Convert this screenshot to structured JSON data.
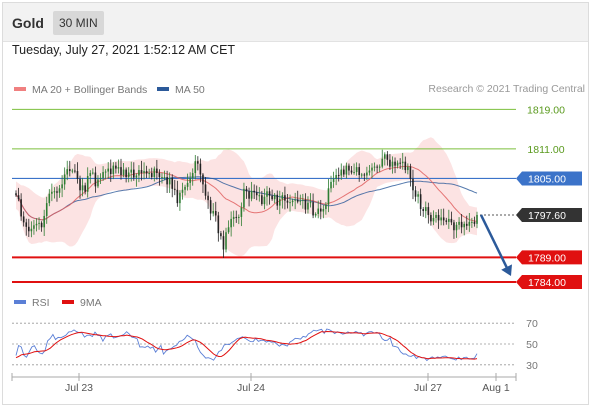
{
  "header": {
    "symbol": "Gold",
    "timeframe": "30 MIN"
  },
  "timestamp": "Tuesday, July 27, 2021 1:52:12 AM CET",
  "legend": {
    "ma20": {
      "label": "MA 20 + Bollinger Bands",
      "color": "#f08080"
    },
    "ma50": {
      "label": "MA 50",
      "color": "#2c5a9a"
    },
    "copyright": "Research © 2021 Trading Central"
  },
  "rsi_legend": {
    "rsi": {
      "label": "RSI",
      "color": "#5b7fd6"
    },
    "ma9": {
      "label": "9MA",
      "color": "#e01010"
    }
  },
  "chart_data": [
    {
      "type": "candlestick",
      "ylim": [
        1783.2,
        1820.5
      ],
      "x_ticks": [
        "Jul 23",
        "Jul 24",
        "Jul 27",
        "Aug 1"
      ],
      "levels": [
        {
          "label": "1819.00",
          "value": 1819.0,
          "kind": "resistance",
          "color": "#7cbf3c"
        },
        {
          "label": "1811.00",
          "value": 1811.0,
          "kind": "resistance",
          "color": "#7cbf3c"
        },
        {
          "label": "1805.00",
          "value": 1805.0,
          "kind": "pivot",
          "color": "#3b73c9"
        },
        {
          "label": "1797.60",
          "value": 1797.6,
          "kind": "last-price",
          "color": "#333333"
        },
        {
          "label": "1789.00",
          "value": 1789.0,
          "kind": "support",
          "color": "#e01010"
        },
        {
          "label": "1784.00",
          "value": 1784.0,
          "kind": "support",
          "color": "#e01010"
        }
      ],
      "close": [
        1801.6,
        1800.8,
        1797.3,
        1796.1,
        1795.2,
        1794.3,
        1794.8,
        1795.5,
        1795.8,
        1796.0,
        1795.1,
        1797.4,
        1800.0,
        1801.9,
        1802.3,
        1802.4,
        1802.1,
        1803.0,
        1803.8,
        1805.8,
        1806.9,
        1806.5,
        1806.6,
        1806.5,
        1804.9,
        1802.6,
        1803.6,
        1802.3,
        1805.5,
        1806.1,
        1806.2,
        1803.4,
        1804.8,
        1805.1,
        1806.3,
        1806.4,
        1807.0,
        1805.9,
        1807.6,
        1807.0,
        1807.3,
        1805.7,
        1806.8,
        1805.3,
        1806.2,
        1806.8,
        1805.2,
        1805.6,
        1806.7,
        1806.1,
        1806.5,
        1806.0,
        1806.1,
        1805.3,
        1807.0,
        1806.1,
        1805.3,
        1805.3,
        1805.3,
        1803.8,
        1805.1,
        1802.9,
        1802.7,
        1800.0,
        1802.1,
        1802.7,
        1803.3,
        1804.1,
        1805.1,
        1806.1,
        1808.5,
        1808.0,
        1805.8,
        1803.8,
        1801.5,
        1800.6,
        1797.9,
        1798.4,
        1797.5,
        1793.9,
        1793.3,
        1790.6,
        1794.1,
        1795.1,
        1796.8,
        1797.2,
        1797.1,
        1797.2,
        1799.1,
        1802.9,
        1802.4,
        1800.9,
        1802.5,
        1802.2,
        1801.6,
        1801.6,
        1799.8,
        1801.3,
        1802.4,
        1801.5,
        1800.8,
        1801.7,
        1799.5,
        1800.8,
        1801.6,
        1800.5,
        1800.1,
        1800.2,
        1800.5,
        1800.7,
        1800.3,
        1800.5,
        1800.7,
        1798.7,
        1800.1,
        1800.2,
        1797.5,
        1797.8,
        1798.9,
        1798.3,
        1798.8,
        1799.7,
        1803.0,
        1804.3,
        1804.9,
        1805.7,
        1805.6,
        1806.8,
        1805.8,
        1807.6,
        1806.6,
        1806.2,
        1806.3,
        1807.3,
        1805.7,
        1805.8,
        1805.6,
        1806.2,
        1806.6,
        1807.2,
        1807.4,
        1807.3,
        1807.4,
        1809.0,
        1809.9,
        1808.8,
        1807.4,
        1808.4,
        1807.6,
        1808.2,
        1808.1,
        1808.4,
        1806.7,
        1807.4,
        1804.9,
        1802.6,
        1801.3,
        1801.8,
        1798.8,
        1798.4,
        1799.2,
        1797.6,
        1796.3,
        1797.0,
        1797.6,
        1796.5,
        1797.1,
        1796.5,
        1796.2,
        1796.8,
        1796.1,
        1794.5,
        1795.6,
        1796.2,
        1795.1,
        1795.8,
        1795.4,
        1796.2,
        1796.2,
        1795.8,
        1797.6
      ]
    },
    {
      "type": "line",
      "name": "RSI",
      "ylim": [
        25,
        75
      ],
      "y_ticks": [
        70,
        50,
        30
      ],
      "series": [
        {
          "name": "RSI",
          "color": "#5b7fd6",
          "values": [
            38.9,
            48.6,
            47.1,
            39.1,
            37.3,
            42.3,
            47.1,
            48.4,
            43.5,
            41.3,
            40.6,
            43.6,
            53.0,
            55.3,
            59.1,
            54.3,
            56.3,
            56.1,
            57.1,
            58.7,
            61.6,
            61.8,
            63.6,
            61.8,
            60.9,
            60.8,
            56.6,
            58.4,
            58.6,
            57.2,
            61.3,
            58.3,
            58.0,
            52.7,
            57.3,
            58.4,
            59.7,
            55.8,
            56.4,
            57.2,
            58.0,
            59.2,
            61.8,
            59.5,
            56.5,
            56.1,
            54.9,
            47.1,
            47.3,
            46.7,
            48.1,
            46.0,
            47.1,
            42.2,
            45.6,
            48.7,
            40.3,
            43.5,
            44.9,
            45.8,
            47.8,
            48.9,
            52.5,
            53.2,
            55.0,
            58.5,
            56.7,
            54.8,
            53.7,
            46.6,
            42.0,
            39.3,
            36.4,
            36.8,
            36.0,
            34.4,
            38.3,
            42.7,
            43.9,
            48.9,
            49.8,
            49.4,
            51.5,
            53.2,
            55.3,
            55.9,
            56.9,
            55.5,
            53.8,
            52.3,
            52.2,
            55.5,
            52.6,
            53.6,
            53.6,
            51.8,
            52.8,
            51.7,
            52.0,
            50.0,
            47.9,
            49.7,
            48.9,
            48.0,
            51.9,
            53.4,
            55.5,
            55.2,
            54.7,
            57.3,
            56.6,
            59.7,
            61.1,
            63.3,
            62.6,
            63.4,
            64.1,
            60.2,
            64.4,
            63.7,
            62.1,
            60.0,
            61.7,
            60.9,
            59.5,
            60.2,
            61.6,
            60.3,
            60.7,
            62.0,
            60.8,
            61.0,
            57.8,
            60.4,
            61.7,
            61.9,
            60.5,
            61.2,
            59.8,
            55.0,
            53.4,
            53.7,
            56.1,
            48.1,
            47.6,
            46.7,
            42.5,
            40.4,
            40.5,
            38.5,
            38.1,
            39.4,
            36.1,
            38.0,
            36.8,
            36.7,
            34.1,
            36.3,
            37.6,
            36.2,
            37.5,
            36.8,
            38.1,
            38.4,
            37.0,
            36.2,
            35.6,
            34.5,
            37.5,
            35.0,
            36.9,
            37.3,
            35.4,
            36.0,
            36.3,
            40.7
          ]
        },
        {
          "name": "9MA",
          "color": "#e01010",
          "values": [
            36.8,
            38.0,
            39.6,
            40.0,
            40.4,
            40.9,
            41.6,
            42.5,
            42.8,
            43.0,
            43.3,
            43.4,
            44.5,
            46.0,
            48.4,
            50.6,
            52.4,
            54.1,
            55.4,
            56.6,
            57.9,
            58.9,
            59.8,
            60.6,
            61.1,
            61.3,
            60.8,
            60.4,
            59.8,
            59.4,
            58.9,
            58.8,
            58.4,
            57.9,
            57.9,
            57.5,
            57.3,
            57.1,
            57.1,
            57.5,
            58.1,
            58.0,
            58.6,
            58.1,
            57.6,
            57.1,
            56.7,
            55.8,
            54.7,
            53.1,
            51.4,
            50.2,
            48.6,
            46.8,
            45.5,
            45.1,
            44.6,
            44.5,
            44.9,
            45.2,
            45.8,
            46.3,
            47.1,
            48.3,
            49.8,
            51.4,
            52.7,
            53.8,
            53.8,
            52.8,
            51.6,
            49.7,
            47.4,
            45.1,
            42.8,
            40.4,
            38.9,
            38.0,
            38.1,
            39.6,
            41.7,
            44.2,
            47.2,
            50.2,
            52.9,
            55.2,
            56.2,
            56.6,
            56.2,
            55.9,
            55.6,
            55.7,
            55.3,
            55.1,
            54.3,
            53.7,
            53.4,
            53.0,
            52.5,
            51.9,
            51.2,
            50.7,
            50.5,
            50.2,
            49.8,
            50.1,
            50.3,
            50.7,
            51.3,
            52.5,
            53.4,
            54.9,
            56.5,
            58.0,
            59.3,
            60.6,
            61.9,
            61.5,
            62.0,
            61.9,
            61.7,
            61.5,
            61.4,
            61.2,
            60.9,
            60.5,
            60.6,
            60.8,
            60.7,
            60.8,
            60.5,
            60.4,
            59.8,
            59.9,
            60.3,
            60.5,
            60.6,
            60.7,
            60.6,
            59.9,
            58.9,
            57.9,
            57.2,
            55.6,
            54.3,
            52.8,
            50.6,
            48.3,
            46.3,
            44.0,
            41.8,
            40.4,
            38.7,
            37.8,
            36.9,
            36.6,
            36.0,
            36.0,
            36.4,
            36.3,
            36.6,
            36.5,
            36.6,
            36.8,
            36.8,
            36.8,
            36.5,
            36.2,
            36.1,
            35.9,
            35.9,
            35.9,
            35.8,
            35.6,
            35.5,
            36.0
          ]
        }
      ]
    }
  ]
}
